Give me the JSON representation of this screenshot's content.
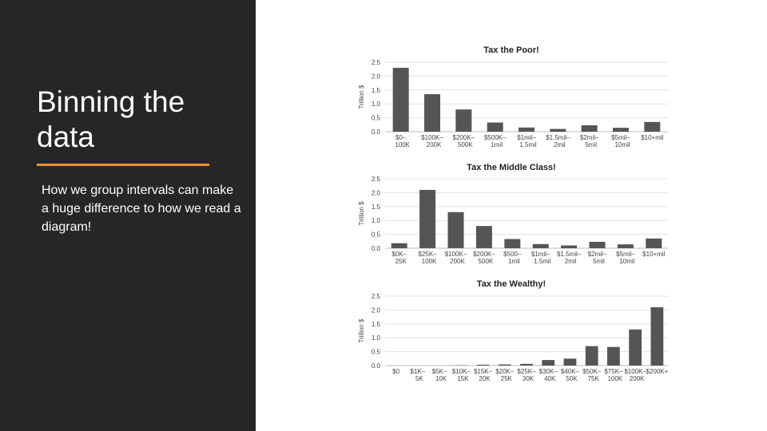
{
  "slide": {
    "title_line1": "Binning the",
    "title_line2": "data",
    "subtitle": "How we group intervals can make a huge difference to how we read a diagram!",
    "accent_color": "#e8913a",
    "panel_color": "#262626"
  },
  "chart_data": [
    {
      "type": "bar",
      "title": "Tax the Poor!",
      "ylabel": "Trillion $",
      "ylim": [
        0,
        2.5
      ],
      "yticks": [
        "0.0",
        "0.5",
        "1.0",
        "1.5",
        "2.0",
        "2.5"
      ],
      "categories": [
        [
          "$0–",
          "100K"
        ],
        [
          "$100K–",
          "200K"
        ],
        [
          "$200K–",
          "500K"
        ],
        [
          "$500K–",
          "1mil"
        ],
        [
          "$1mil–",
          "1.5mil"
        ],
        [
          "$1.5mil–",
          "2mil"
        ],
        [
          "$2mil–",
          "5mil"
        ],
        [
          "$5mil–",
          "10mil"
        ],
        [
          "$10+mil",
          ""
        ]
      ],
      "values": [
        2.3,
        1.35,
        0.8,
        0.33,
        0.15,
        0.1,
        0.23,
        0.14,
        0.35
      ],
      "grid": true,
      "bar_color": "#555555"
    },
    {
      "type": "bar",
      "title": "Tax the Middle Class!",
      "ylabel": "Trillion $",
      "ylim": [
        0,
        2.5
      ],
      "yticks": [
        "0.0",
        "0.5",
        "1.0",
        "1.5",
        "2.0",
        "2.5"
      ],
      "categories": [
        [
          "$0K–",
          "25K"
        ],
        [
          "$25K–",
          "100K"
        ],
        [
          "$100K–",
          "200K"
        ],
        [
          "$200K–",
          "500K"
        ],
        [
          "$500–",
          "1mil"
        ],
        [
          "$1mil–",
          "1.5mil"
        ],
        [
          "$1.5mil–",
          "2mil"
        ],
        [
          "$2mil–",
          "5mil"
        ],
        [
          "$5mil–",
          "10mil"
        ],
        [
          "$10+mil",
          ""
        ]
      ],
      "values": [
        0.18,
        2.1,
        1.3,
        0.8,
        0.33,
        0.15,
        0.1,
        0.23,
        0.14,
        0.35
      ],
      "grid": true,
      "bar_color": "#555555"
    },
    {
      "type": "bar",
      "title": "Tax the Wealthy!",
      "ylabel": "Trillion $",
      "ylim": [
        0,
        2.5
      ],
      "yticks": [
        "0.0",
        "0.5",
        "1.0",
        "1.5",
        "2.0",
        "2.5"
      ],
      "categories": [
        [
          "$0",
          ""
        ],
        [
          "$1K–",
          "5K"
        ],
        [
          "$5K–",
          "10K"
        ],
        [
          "$10K–",
          "15K"
        ],
        [
          "$15K–",
          "20K"
        ],
        [
          "$20K–",
          "25K"
        ],
        [
          "$25K–",
          "30K"
        ],
        [
          "$30K–",
          "40K"
        ],
        [
          "$40K–",
          "50K"
        ],
        [
          "$50K–",
          "75K"
        ],
        [
          "$75K–",
          "100K"
        ],
        [
          "$100K–",
          "200K"
        ],
        [
          "$200K+",
          ""
        ]
      ],
      "values": [
        0.0,
        0.0,
        0.0,
        0.01,
        0.03,
        0.04,
        0.06,
        0.2,
        0.25,
        0.7,
        0.67,
        1.3,
        2.1
      ],
      "grid": true,
      "bar_color": "#555555"
    }
  ]
}
